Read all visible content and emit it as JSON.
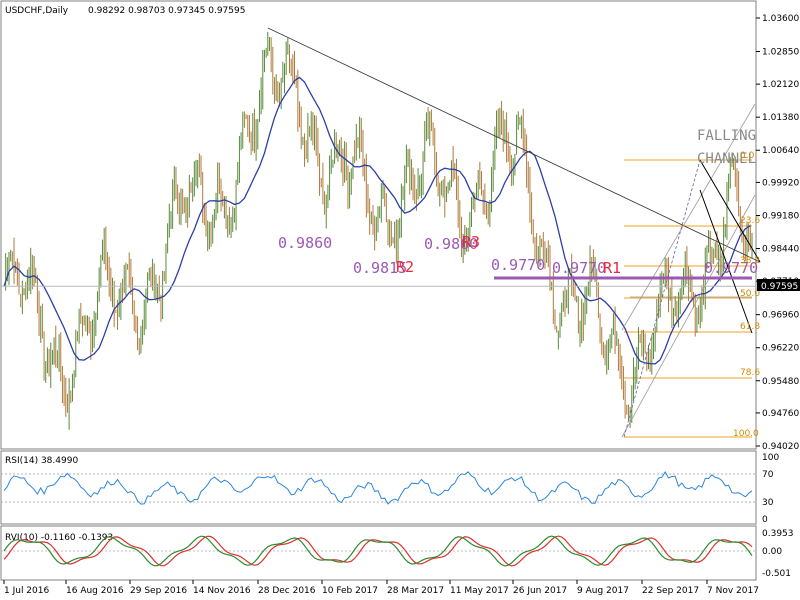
{
  "header": {
    "symbol": "USDCHF,Daily",
    "ohlc": "0.98292 0.98703 0.97345 0.97595"
  },
  "price_scale": [
    "1.03600",
    "1.02850",
    "1.02120",
    "1.01380",
    "1.00640",
    "0.99920",
    "0.99180",
    "0.98440",
    "0.97710",
    "0.96960",
    "0.96220",
    "0.95480",
    "0.94760",
    "0.94020"
  ],
  "current_price": "0.97595",
  "date_labels": [
    "1 Jul 2016",
    "16 Aug 2016",
    "29 Sep 2016",
    "14 Nov 2016",
    "28 Dec 2016",
    "10 Feb 2017",
    "28 Mar 2017",
    "11 May 2017",
    "26 Jun 2017",
    "9 Aug 2017",
    "22 Sep 2017",
    "7 Nov 2017"
  ],
  "annotations": {
    "lvl_1": "0.9860",
    "lvl_2": "0.9815",
    "res_2": "R2",
    "lvl_3": "0.9860",
    "res_3": "R3",
    "lvl_4": "0.9770",
    "lvl_5": "0.9770",
    "res_1": "R1",
    "lvl_6": "0.9770",
    "channel_1": "FALLING",
    "channel_2": "CHANNEL"
  },
  "fib_labels": {
    "f0": "0.0",
    "f236": "23.6",
    "f382": "38.2",
    "f500": "50.0",
    "f618": "61.8",
    "f786": "78.6",
    "f1000": "100.0"
  },
  "rsi": {
    "title": "RSI(14) 38.4990",
    "scale": [
      "100",
      "70",
      "30",
      "0"
    ]
  },
  "rvi": {
    "title": "RVI(10) -0.1160 -0.1393",
    "scale": [
      "0.3953",
      "0.00",
      "-0.501"
    ]
  },
  "colors": {
    "bull": "#5a8a3a",
    "bear": "#b07a3a",
    "ma": "#2d3fa6",
    "rsi": "#2e86de",
    "rvi_main": "#2e8b2e",
    "rvi_signal": "#e03030",
    "fib": "#f0a020",
    "level": "#9b59b6",
    "grid": "#b0b0b0"
  },
  "chart_data": {
    "type": "candlestick",
    "symbol": "USDCHF",
    "timeframe": "Daily",
    "ylim": [
      0.9402,
      1.036
    ],
    "y_ticks": [
      1.036,
      1.0285,
      1.0212,
      1.0138,
      1.0064,
      0.9992,
      0.9918,
      0.9844,
      0.9771,
      0.9696,
      0.9622,
      0.9548,
      0.9476,
      0.9402
    ],
    "x_ticks": [
      "1 Jul 2016",
      "16 Aug 2016",
      "29 Sep 2016",
      "14 Nov 2016",
      "28 Dec 2016",
      "10 Feb 2017",
      "28 Mar 2017",
      "11 May 2017",
      "26 Jun 2017",
      "9 Aug 2017",
      "22 Sep 2017",
      "7 Nov 2017"
    ],
    "close_path": [
      {
        "x": "1 Jul 2016",
        "y": 0.976
      },
      {
        "x": "16 Aug 2016",
        "y": 0.962
      },
      {
        "x": "29 Sep 2016",
        "y": 0.972
      },
      {
        "x": "14 Nov 2016",
        "y": 0.995
      },
      {
        "x": "28 Dec 2016",
        "y": 1.025
      },
      {
        "x": "10 Feb 2017",
        "y": 0.997
      },
      {
        "x": "28 Mar 2017",
        "y": 0.998
      },
      {
        "x": "11 May 2017",
        "y": 1.003
      },
      {
        "x": "26 Jun 2017",
        "y": 0.969
      },
      {
        "x": "9 Aug 2017",
        "y": 0.962
      },
      {
        "x": "22 Sep 2017",
        "y": 0.969
      },
      {
        "x": "7 Nov 2017",
        "y": 0.999
      },
      {
        "x": "7 Nov 2017",
        "y": 0.976
      }
    ],
    "series": [
      {
        "name": "MA",
        "values": [
          0.975,
          0.973,
          0.976,
          0.985,
          0.999,
          1.004,
          1.005,
          0.998,
          0.986,
          0.976,
          0.968,
          0.97,
          0.973
        ]
      }
    ]
  }
}
